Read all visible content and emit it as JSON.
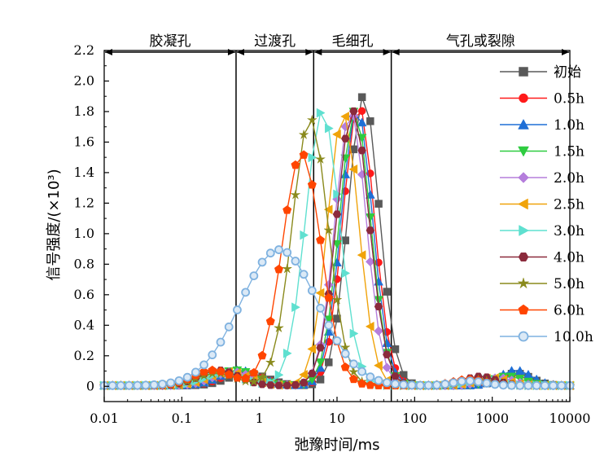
{
  "chart_data": {
    "type": "line",
    "xscale": "log",
    "xlim": [
      0.01,
      10000
    ],
    "ylim": [
      -0.1,
      2.2
    ],
    "xlabel": "弛豫时间/ms",
    "ylabel": "信号强度/(×10³)",
    "x_ticks": [
      "0.01",
      "0.1",
      "1",
      "10",
      "100",
      "1000",
      "10000"
    ],
    "y_ticks": [
      "0",
      "0.2",
      "0.4",
      "0.6",
      "0.8",
      "1.0",
      "1.2",
      "1.4",
      "1.6",
      "1.8",
      "2.0",
      "2.2"
    ],
    "grid": false,
    "legend_position": "right",
    "regions": [
      {
        "label": "胶凝孔",
        "from": 0.01,
        "to": 0.5
      },
      {
        "label": "过渡孔",
        "from": 0.5,
        "to": 5
      },
      {
        "label": "毛细孔",
        "from": 5,
        "to": 50
      },
      {
        "label": "气孔或裂隙",
        "from": 50,
        "to": 10000
      }
    ],
    "boundaries": [
      0.5,
      5,
      50
    ],
    "series": [
      {
        "name": "初始",
        "color": "#595959",
        "marker": "square",
        "peak_x": 22,
        "peak_y": 1.9,
        "peak_w": 0.2,
        "hump_x": 0.7,
        "hump_y": 0.08,
        "hump2_x": 2000,
        "hump2_y": 0.08
      },
      {
        "name": "0.5h",
        "color": "#ff1a1a",
        "marker": "circle",
        "peak_x": 19,
        "peak_y": 1.84,
        "peak_w": 0.2,
        "hump_x": 0.6,
        "hump_y": 0.09,
        "hump2_x": 1800,
        "hump2_y": 0.07
      },
      {
        "name": "1.0h",
        "color": "#1f6fd6",
        "marker": "triangle-up",
        "peak_x": 18,
        "peak_y": 1.82,
        "peak_w": 0.2,
        "hump_x": 0.55,
        "hump_y": 0.1,
        "hump2_x": 2000,
        "hump2_y": 0.1
      },
      {
        "name": "1.5h",
        "color": "#2ecc40",
        "marker": "triangle-down",
        "peak_x": 17,
        "peak_y": 1.8,
        "peak_w": 0.2,
        "hump_x": 0.5,
        "hump_y": 0.1,
        "hump2_x": 1600,
        "hump2_y": 0.06
      },
      {
        "name": "2.0h",
        "color": "#b57edc",
        "marker": "diamond",
        "peak_x": 15,
        "peak_y": 1.8,
        "peak_w": 0.2,
        "hump_x": 0.45,
        "hump_y": 0.09,
        "hump2_x": 1200,
        "hump2_y": 0.05
      },
      {
        "name": "2.5h",
        "color": "#f0a30a",
        "marker": "triangle-left",
        "peak_x": 12,
        "peak_y": 1.78,
        "peak_w": 0.2,
        "hump_x": 0.4,
        "hump_y": 0.09,
        "hump2_x": 1000,
        "hump2_y": 0.05
      },
      {
        "name": "3.0h",
        "color": "#5fe0d0",
        "marker": "triangle-right",
        "peak_x": 6.5,
        "peak_y": 1.8,
        "peak_w": 0.22,
        "hump_x": 0.35,
        "hump_y": 0.08,
        "hump2_x": 800,
        "hump2_y": 0.04
      },
      {
        "name": "4.0h",
        "color": "#8b2a3c",
        "marker": "hexagon",
        "peak_x": 16,
        "peak_y": 1.8,
        "peak_w": 0.21,
        "hump_x": 0.3,
        "hump_y": 0.1,
        "hump2_x": 700,
        "hump2_y": 0.06
      },
      {
        "name": "5.0h",
        "color": "#8a8a1c",
        "marker": "star",
        "peak_x": 4.5,
        "peak_y": 1.75,
        "peak_w": 0.23,
        "hump_x": 0.28,
        "hump_y": 0.08,
        "hump2_x": 600,
        "hump2_y": 0.04
      },
      {
        "name": "6.0h",
        "color": "#ff4500",
        "marker": "pentagon",
        "peak_x": 3.5,
        "peak_y": 1.52,
        "peak_w": 0.25,
        "hump_x": 0.25,
        "hump_y": 0.1,
        "hump2_x": 500,
        "hump2_y": 0.04
      },
      {
        "name": "10.0h",
        "color": "#7fb2e0",
        "marker": "sphere",
        "peak_x": 1.8,
        "peak_y": 0.89,
        "peak_w": 0.5,
        "hump_x": 0.2,
        "hump_y": 0.0,
        "hump2_x": 500,
        "hump2_y": 0.03
      }
    ]
  }
}
